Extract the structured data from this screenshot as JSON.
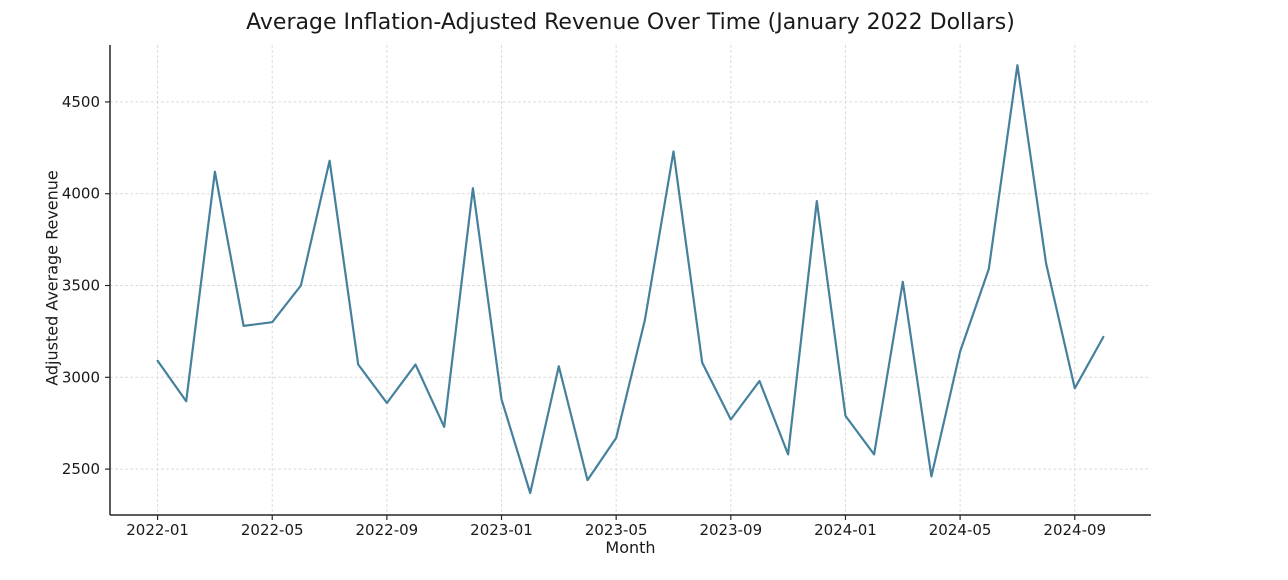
{
  "chart_data": {
    "type": "line",
    "title": "Average Inflation-Adjusted Revenue Over Time (January 2022 Dollars)",
    "xlabel": "Month",
    "ylabel": "Adjusted Average Revenue",
    "x": [
      "2022-01",
      "2022-02",
      "2022-03",
      "2022-04",
      "2022-05",
      "2022-06",
      "2022-07",
      "2022-08",
      "2022-09",
      "2022-10",
      "2022-11",
      "2022-12",
      "2023-01",
      "2023-02",
      "2023-03",
      "2023-04",
      "2023-05",
      "2023-06",
      "2023-07",
      "2023-08",
      "2023-09",
      "2023-10",
      "2023-11",
      "2023-12",
      "2024-01",
      "2024-02",
      "2024-03",
      "2024-04",
      "2024-05",
      "2024-06",
      "2024-07",
      "2024-08",
      "2024-09",
      "2024-10"
    ],
    "values": [
      3090,
      2870,
      4120,
      3280,
      3300,
      3500,
      4180,
      3070,
      2860,
      3070,
      2730,
      4030,
      2880,
      2370,
      3060,
      2440,
      2670,
      3310,
      4230,
      3080,
      2770,
      2980,
      2580,
      3960,
      2790,
      2580,
      3520,
      2460,
      3140,
      3590,
      4700,
      3620,
      2940,
      3220
    ],
    "x_tick_indices": [
      0,
      4,
      8,
      12,
      16,
      20,
      24,
      28,
      32
    ],
    "x_tick_labels": [
      "2022-01",
      "2022-05",
      "2022-09",
      "2023-01",
      "2023-05",
      "2023-09",
      "2024-01",
      "2024-05",
      "2024-09"
    ],
    "y_ticks": [
      2500,
      3000,
      3500,
      4000,
      4500
    ],
    "ylim": [
      2250,
      4810
    ],
    "xlim_index": [
      -1.66,
      34.66
    ],
    "grid": true,
    "legend": "none",
    "colors": {
      "line": "#45819C",
      "grid": "#d9d9d9",
      "spine": "#262626",
      "text": "#1a1a1a"
    }
  }
}
